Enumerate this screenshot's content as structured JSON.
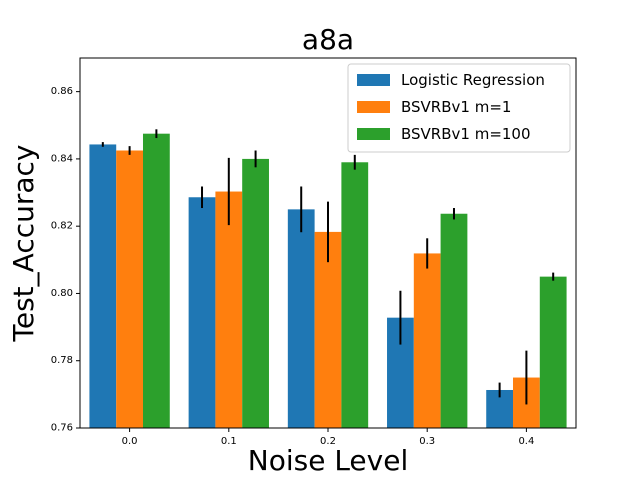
{
  "chart_data": {
    "type": "bar",
    "title": "a8a",
    "xlabel": "Noise Level",
    "ylabel": "Test_Accuracy",
    "categories": [
      "0.0",
      "0.1",
      "0.2",
      "0.3",
      "0.4"
    ],
    "ylim": [
      0.76,
      0.87
    ],
    "yticks": [
      0.76,
      0.78,
      0.8,
      0.82,
      0.84,
      0.86
    ],
    "ytick_labels": [
      "0.76",
      "0.78",
      "0.80",
      "0.82",
      "0.84",
      "0.86"
    ],
    "legend_position": "top-right",
    "series": [
      {
        "name": "Logistic Regression",
        "color": "#1f77b4",
        "values": [
          0.8443,
          0.8286,
          0.825,
          0.7928,
          0.7713
        ],
        "errors": [
          0.0007,
          0.0032,
          0.0068,
          0.008,
          0.0022
        ]
      },
      {
        "name": "BSVRBv1 m=1",
        "color": "#ff7f0e",
        "values": [
          0.8425,
          0.8303,
          0.8183,
          0.8119,
          0.775
        ],
        "errors": [
          0.0013,
          0.01,
          0.009,
          0.0045,
          0.008
        ]
      },
      {
        "name": "BSVRBv1 m=100",
        "color": "#2ca02c",
        "values": [
          0.8475,
          0.84,
          0.839,
          0.8237,
          0.805
        ],
        "errors": [
          0.0013,
          0.0025,
          0.0022,
          0.0017,
          0.0012
        ]
      }
    ]
  }
}
